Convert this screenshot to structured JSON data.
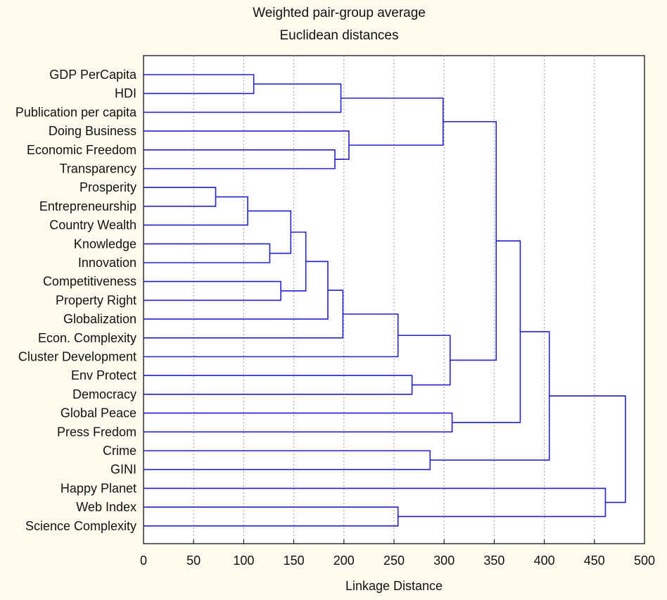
{
  "chart_data": {
    "type": "dendrogram",
    "title": "Weighted pair-group average",
    "subtitle": "Euclidean distances",
    "xlabel": "Linkage Distance",
    "xlim": [
      0,
      500
    ],
    "xticks": [
      0,
      50,
      100,
      150,
      200,
      250,
      300,
      350,
      400,
      450,
      500
    ],
    "grid": true,
    "line_color": "#2222cc",
    "leaves": [
      "GDP PerCapita",
      "HDI",
      "Publication per capita",
      "Doing Business",
      "Economic Freedom",
      "Transparency",
      "Prosperity",
      "Entrepreneurship",
      "Country Wealth",
      "Knowledge",
      "Innovation",
      "Competitiveness",
      "Property Right",
      "Globalization",
      "Econ. Complexity",
      "Cluster Development",
      "Env Protect",
      "Democracy",
      "Global Peace",
      "Press Fredom",
      "Crime",
      "GINI",
      "Happy Planet",
      "Web Index",
      "Science Complexity"
    ],
    "merges": [
      {
        "a": "GDP PerCapita",
        "b": "HDI",
        "height": 110
      },
      {
        "a": 0,
        "b": "Publication per capita",
        "height": 197
      },
      {
        "a": "Economic Freedom",
        "b": "Transparency",
        "height": 191
      },
      {
        "a": "Doing Business",
        "b": 2,
        "height": 205
      },
      {
        "a": 1,
        "b": 3,
        "height": 299
      },
      {
        "a": "Prosperity",
        "b": "Entrepreneurship",
        "height": 72
      },
      {
        "a": 5,
        "b": "Country Wealth",
        "height": 104
      },
      {
        "a": "Knowledge",
        "b": "Innovation",
        "height": 126
      },
      {
        "a": 6,
        "b": 7,
        "height": 147
      },
      {
        "a": "Competitiveness",
        "b": "Property Right",
        "height": 137
      },
      {
        "a": 8,
        "b": 9,
        "height": 162
      },
      {
        "a": 10,
        "b": "Globalization",
        "height": 184
      },
      {
        "a": 11,
        "b": "Econ. Complexity",
        "height": 199
      },
      {
        "a": 12,
        "b": "Cluster Development",
        "height": 254
      },
      {
        "a": "Env Protect",
        "b": "Democracy",
        "height": 268
      },
      {
        "a": 13,
        "b": 14,
        "height": 306
      },
      {
        "a": 4,
        "b": 15,
        "height": 352
      },
      {
        "a": "Global Peace",
        "b": "Press Fredom",
        "height": 308
      },
      {
        "a": 16,
        "b": 17,
        "height": 376
      },
      {
        "a": "Crime",
        "b": "GINI",
        "height": 286
      },
      {
        "a": 18,
        "b": 19,
        "height": 405
      },
      {
        "a": "Web Index",
        "b": "Science Complexity",
        "height": 254
      },
      {
        "a": "Happy Planet",
        "b": 21,
        "height": 461
      },
      {
        "a": 20,
        "b": 22,
        "height": 481
      }
    ]
  }
}
